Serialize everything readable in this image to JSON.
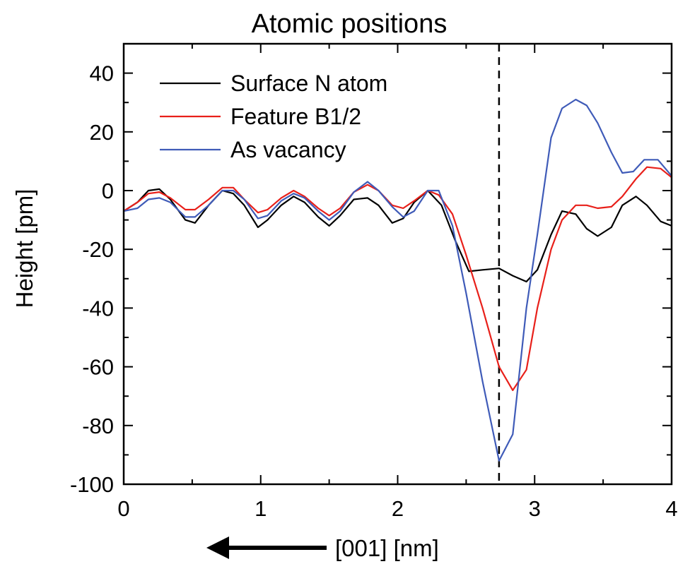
{
  "chart_data": {
    "type": "line",
    "title": "Atomic positions",
    "xlabel": "[001] [nm]",
    "ylabel": "Height [pm]",
    "xlim": [
      0,
      4
    ],
    "ylim": [
      -100,
      50
    ],
    "x_ticks": [
      0,
      1,
      2,
      3,
      4
    ],
    "x_tick_labels": [
      "0",
      "1",
      "2",
      "3",
      "4"
    ],
    "y_ticks": [
      -100,
      -80,
      -60,
      -40,
      -20,
      0,
      20,
      40
    ],
    "y_tick_labels": [
      "-100",
      "-80",
      "-60",
      "-40",
      "-20",
      "0",
      "20",
      "40"
    ],
    "grid": false,
    "legend_position": "top-left",
    "vertical_reference_x": 2.74,
    "direction_arrow": "left",
    "series": [
      {
        "name": "Surface N atom",
        "color": "#000000",
        "x": [
          0,
          0.1,
          0.18,
          0.26,
          0.34,
          0.45,
          0.52,
          0.62,
          0.72,
          0.8,
          0.88,
          0.98,
          1.05,
          1.15,
          1.24,
          1.32,
          1.42,
          1.5,
          1.58,
          1.68,
          1.78,
          1.86,
          1.96,
          2.04,
          2.12,
          2.22,
          2.32,
          2.42,
          2.52,
          2.62,
          2.74,
          2.84,
          2.94,
          3.02,
          3.12,
          3.2,
          3.3,
          3.38,
          3.46,
          3.56,
          3.64,
          3.74,
          3.82,
          3.92,
          4.0
        ],
        "y": [
          -7,
          -4,
          0,
          0.5,
          -3,
          -10,
          -11,
          -5,
          0,
          -1,
          -5,
          -12.5,
          -10,
          -5,
          -2,
          -4,
          -9,
          -12,
          -8.5,
          -3,
          -2.5,
          -5,
          -11,
          -9.5,
          -4,
          0,
          -5,
          -17,
          -27.5,
          -27,
          -26.5,
          -29,
          -31,
          -27,
          -15,
          -7,
          -8,
          -13,
          -15.5,
          -12.5,
          -5,
          -2,
          -5,
          -10.5,
          -12
        ]
      },
      {
        "name": "Feature B1/2",
        "color": "#e8201a",
        "x": [
          0,
          0.1,
          0.18,
          0.26,
          0.34,
          0.45,
          0.52,
          0.62,
          0.72,
          0.8,
          0.88,
          0.98,
          1.05,
          1.15,
          1.24,
          1.32,
          1.42,
          1.5,
          1.58,
          1.68,
          1.78,
          1.86,
          1.96,
          2.04,
          2.12,
          2.22,
          2.3,
          2.4,
          2.5,
          2.62,
          2.74,
          2.84,
          2.94,
          3.02,
          3.12,
          3.2,
          3.3,
          3.38,
          3.46,
          3.56,
          3.64,
          3.74,
          3.82,
          3.92,
          4.0
        ],
        "y": [
          -7,
          -4,
          -1,
          -0.5,
          -2.5,
          -6.5,
          -6.5,
          -3,
          1,
          1,
          -3,
          -7.5,
          -6.5,
          -2.5,
          0,
          -2,
          -6,
          -8.5,
          -6,
          -0.5,
          2,
          0,
          -5,
          -6,
          -3.5,
          0,
          -1.5,
          -8,
          -22,
          -40,
          -60,
          -68,
          -61,
          -40,
          -20,
          -10,
          -5,
          -5,
          -6,
          -5.5,
          -2,
          4,
          8,
          7.5,
          4.5
        ]
      },
      {
        "name": "As vacancy",
        "color": "#3f5bb8",
        "x": [
          0,
          0.1,
          0.18,
          0.26,
          0.34,
          0.45,
          0.52,
          0.62,
          0.72,
          0.8,
          0.88,
          0.98,
          1.05,
          1.15,
          1.24,
          1.32,
          1.42,
          1.5,
          1.58,
          1.68,
          1.78,
          1.86,
          1.96,
          2.04,
          2.12,
          2.22,
          2.3,
          2.4,
          2.5,
          2.62,
          2.74,
          2.84,
          2.94,
          3.02,
          3.12,
          3.2,
          3.3,
          3.38,
          3.46,
          3.56,
          3.64,
          3.72,
          3.8,
          3.9,
          4.0
        ],
        "y": [
          -7,
          -6,
          -3,
          -2.5,
          -4,
          -9,
          -9,
          -5,
          0,
          0,
          -3,
          -9.5,
          -8.5,
          -3.5,
          -1,
          -2.5,
          -7,
          -10,
          -7,
          -0.5,
          3,
          0,
          -5.5,
          -9,
          -7,
          0,
          0,
          -12,
          -35,
          -65,
          -92,
          -83,
          -40,
          -15,
          18,
          28,
          31,
          29,
          23,
          13,
          6,
          6.5,
          10.5,
          10.5,
          5
        ]
      }
    ]
  }
}
